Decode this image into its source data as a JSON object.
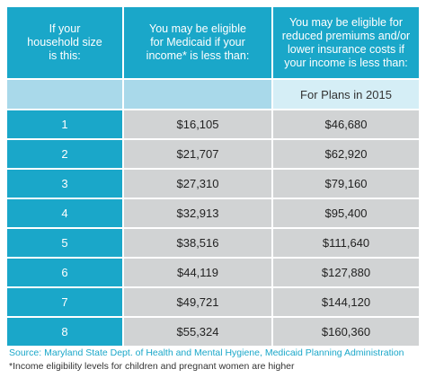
{
  "table": {
    "header": [
      [
        "If your",
        "household size",
        "is this:"
      ],
      [
        "You may be eligible",
        "for Medicaid if your",
        "income* is less than:"
      ],
      [
        "You may be eligible for",
        "reduced premiums and/or",
        "lower insurance costs if",
        "your income is less than:"
      ]
    ],
    "subheader": "For Plans in 2015",
    "rows": [
      [
        "1",
        "$16,105",
        "$46,680"
      ],
      [
        "2",
        "$21,707",
        "$62,920"
      ],
      [
        "3",
        "$27,310",
        "$79,160"
      ],
      [
        "4",
        "$32,913",
        "$95,400"
      ],
      [
        "5",
        "$38,516",
        "$111,640"
      ],
      [
        "6",
        "$44,119",
        "$127,880"
      ],
      [
        "7",
        "$49,721",
        "$144,120"
      ],
      [
        "8",
        "$55,324",
        "$160,360"
      ]
    ]
  },
  "source": "Source: Maryland State Dept. of Health and Mental Hygiene, Medicaid Planning Administration",
  "note": "*Income eligibility levels for children and pregnant women are higher"
}
